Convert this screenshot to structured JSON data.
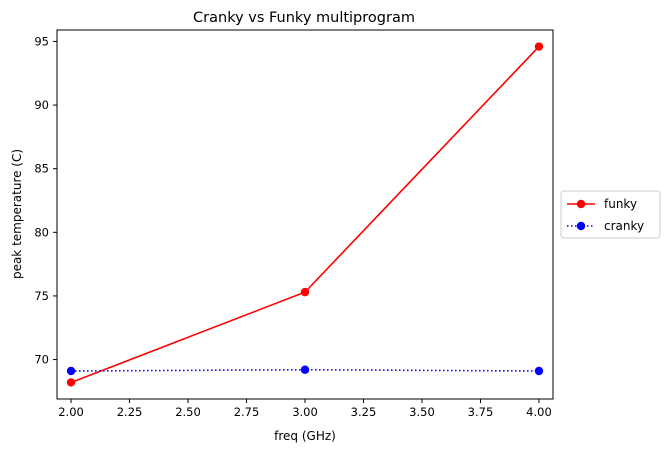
{
  "chart_data": {
    "type": "line",
    "title": "Cranky vs Funky multiprogram",
    "xlabel": "freq (GHz)",
    "ylabel": "peak temperature (C)",
    "xlim": [
      1.94,
      4.06
    ],
    "ylim": [
      66.9,
      95.9
    ],
    "xticks": [
      "2.00",
      "2.25",
      "2.50",
      "2.75",
      "3.00",
      "3.25",
      "3.50",
      "3.75",
      "4.00"
    ],
    "yticks": [
      "70",
      "75",
      "80",
      "85",
      "90",
      "95"
    ],
    "x": [
      2.0,
      3.0,
      4.0
    ],
    "series": [
      {
        "name": "funky",
        "values": [
          68.2,
          75.3,
          94.6
        ],
        "color": "#ff0000",
        "linestyle": "solid",
        "marker": "circle"
      },
      {
        "name": "cranky",
        "values": [
          69.1,
          69.2,
          69.1
        ],
        "color": "#0000ff",
        "linestyle": "dotted",
        "marker": "circle"
      }
    ],
    "legend_position": "center-right, outside plot",
    "grid": false
  }
}
